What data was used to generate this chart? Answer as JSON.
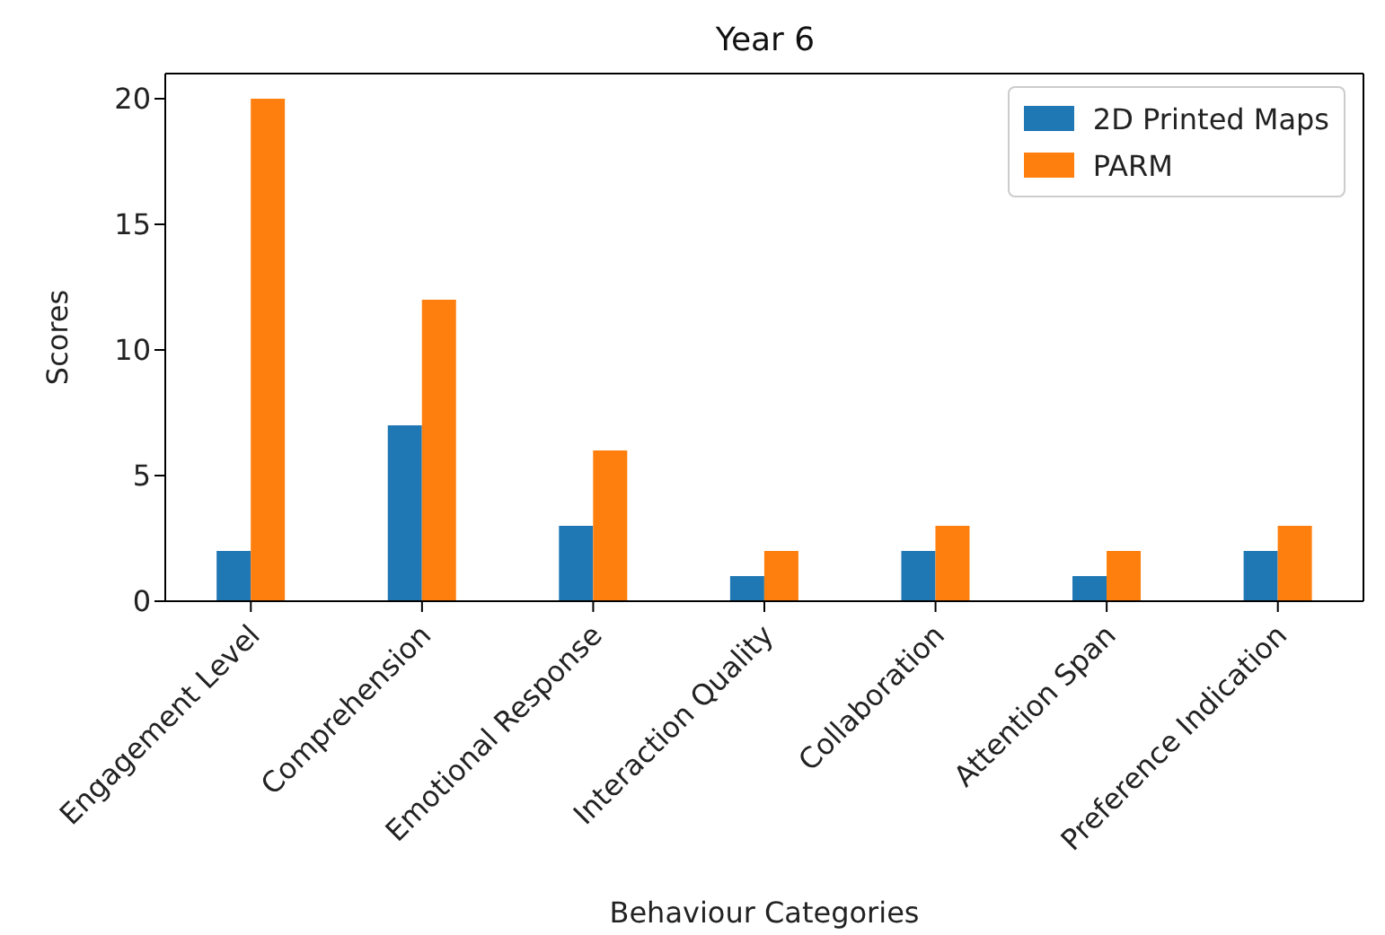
{
  "chart_data": {
    "type": "bar",
    "title": "Year 6",
    "xlabel": "Behaviour Categories",
    "ylabel": "Scores",
    "categories": [
      "Engagement Level",
      "Comprehension",
      "Emotional Response",
      "Interaction Quality",
      "Collaboration",
      "Attention Span",
      "Preference Indication"
    ],
    "series": [
      {
        "name": "2D Printed Maps",
        "color": "#1f77b4",
        "values": [
          2,
          7,
          3,
          1,
          2,
          1,
          2
        ]
      },
      {
        "name": "PARM",
        "color": "#ff7f0e",
        "values": [
          20,
          12,
          6,
          2,
          3,
          2,
          3
        ]
      }
    ],
    "ylim": [
      0,
      21
    ],
    "yticks": [
      0,
      5,
      10,
      15,
      20
    ],
    "legend": "top right"
  }
}
